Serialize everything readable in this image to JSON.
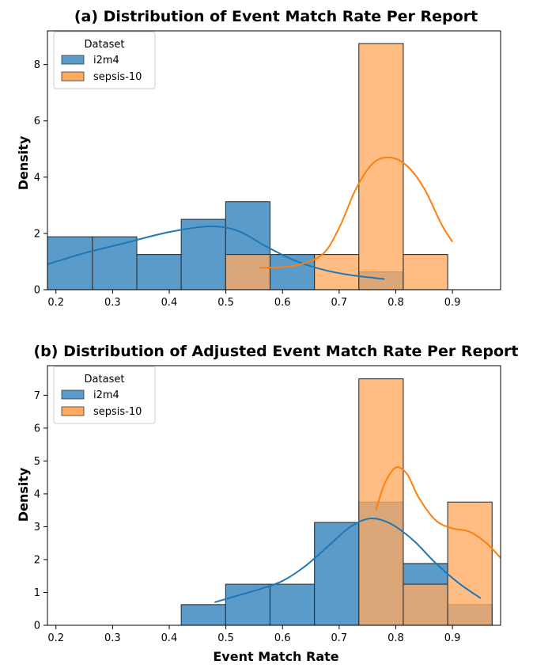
{
  "chart_data": [
    {
      "type": "histogram",
      "title": "(a) Distribution of Event Match Rate Per Report",
      "xlabel": "",
      "ylabel": "Density",
      "xlim": [
        0.185,
        0.985
      ],
      "ylim": [
        0,
        9.2
      ],
      "xticks": [
        "0.2",
        "0.3",
        "0.4",
        "0.5",
        "0.6",
        "0.7",
        "0.8",
        "0.9"
      ],
      "yticks": [
        "0",
        "2",
        "4",
        "6",
        "8"
      ],
      "legend": {
        "title": "Dataset",
        "position": "top-left"
      },
      "bin_edges": [
        0.185,
        0.2644,
        0.3428,
        0.4212,
        0.4996,
        0.578,
        0.6564,
        0.7348,
        0.8132,
        0.8916
      ],
      "series": [
        {
          "name": "i2m4",
          "color": "#1f77b4",
          "bar_fill": "#5b9bc9",
          "values": [
            1.88,
            1.88,
            1.25,
            2.5,
            3.13,
            1.25,
            0,
            0.63,
            0
          ],
          "kde": [
            [
              0.185,
              0.9
            ],
            [
              0.25,
              1.3
            ],
            [
              0.32,
              1.65
            ],
            [
              0.4,
              2.05
            ],
            [
              0.47,
              2.25
            ],
            [
              0.52,
              2.1
            ],
            [
              0.57,
              1.55
            ],
            [
              0.62,
              1.05
            ],
            [
              0.67,
              0.72
            ],
            [
              0.72,
              0.52
            ],
            [
              0.78,
              0.38
            ]
          ]
        },
        {
          "name": "sepsis-10",
          "color": "#ff7f0e",
          "bar_fill": "#ffab62",
          "values": [
            0,
            0,
            0,
            0,
            1.25,
            0,
            1.25,
            8.75,
            1.25
          ],
          "kde": [
            [
              0.56,
              0.78
            ],
            [
              0.62,
              0.85
            ],
            [
              0.67,
              1.25
            ],
            [
              0.7,
              2.2
            ],
            [
              0.73,
              3.6
            ],
            [
              0.76,
              4.5
            ],
            [
              0.79,
              4.7
            ],
            [
              0.82,
              4.4
            ],
            [
              0.85,
              3.6
            ],
            [
              0.88,
              2.35
            ],
            [
              0.9,
              1.7
            ]
          ]
        }
      ]
    },
    {
      "type": "histogram",
      "title": "(b) Distribution of Adjusted Event Match Rate Per Report",
      "xlabel": "Event Match Rate",
      "ylabel": "Density",
      "xlim": [
        0.185,
        0.985
      ],
      "ylim": [
        0,
        7.9
      ],
      "xticks": [
        "0.2",
        "0.3",
        "0.4",
        "0.5",
        "0.6",
        "0.7",
        "0.8",
        "0.9"
      ],
      "yticks": [
        "0",
        "1",
        "2",
        "3",
        "4",
        "5",
        "6",
        "7"
      ],
      "legend": {
        "title": "Dataset",
        "position": "top-left"
      },
      "bin_edges": [
        0.4212,
        0.4996,
        0.578,
        0.6564,
        0.7348,
        0.8132,
        0.8916,
        0.97
      ],
      "series": [
        {
          "name": "i2m4",
          "color": "#1f77b4",
          "bar_fill": "#5b9bc9",
          "values": [
            0.63,
            1.25,
            1.25,
            3.13,
            3.75,
            1.88,
            0.63
          ],
          "kde": [
            [
              0.48,
              0.7
            ],
            [
              0.52,
              0.9
            ],
            [
              0.56,
              1.1
            ],
            [
              0.6,
              1.35
            ],
            [
              0.64,
              1.8
            ],
            [
              0.68,
              2.4
            ],
            [
              0.72,
              3.0
            ],
            [
              0.755,
              3.25
            ],
            [
              0.79,
              3.1
            ],
            [
              0.83,
              2.6
            ],
            [
              0.87,
              1.9
            ],
            [
              0.91,
              1.3
            ],
            [
              0.95,
              0.82
            ]
          ]
        },
        {
          "name": "sepsis-10",
          "color": "#ff7f0e",
          "bar_fill": "#ffab62",
          "values": [
            0,
            0,
            0,
            0,
            7.5,
            1.25,
            3.75
          ],
          "kde": [
            [
              0.765,
              3.5
            ],
            [
              0.78,
              4.3
            ],
            [
              0.8,
              4.8
            ],
            [
              0.82,
              4.6
            ],
            [
              0.84,
              3.9
            ],
            [
              0.87,
              3.2
            ],
            [
              0.9,
              2.95
            ],
            [
              0.93,
              2.85
            ],
            [
              0.96,
              2.5
            ],
            [
              0.985,
              2.05
            ]
          ]
        }
      ]
    }
  ]
}
